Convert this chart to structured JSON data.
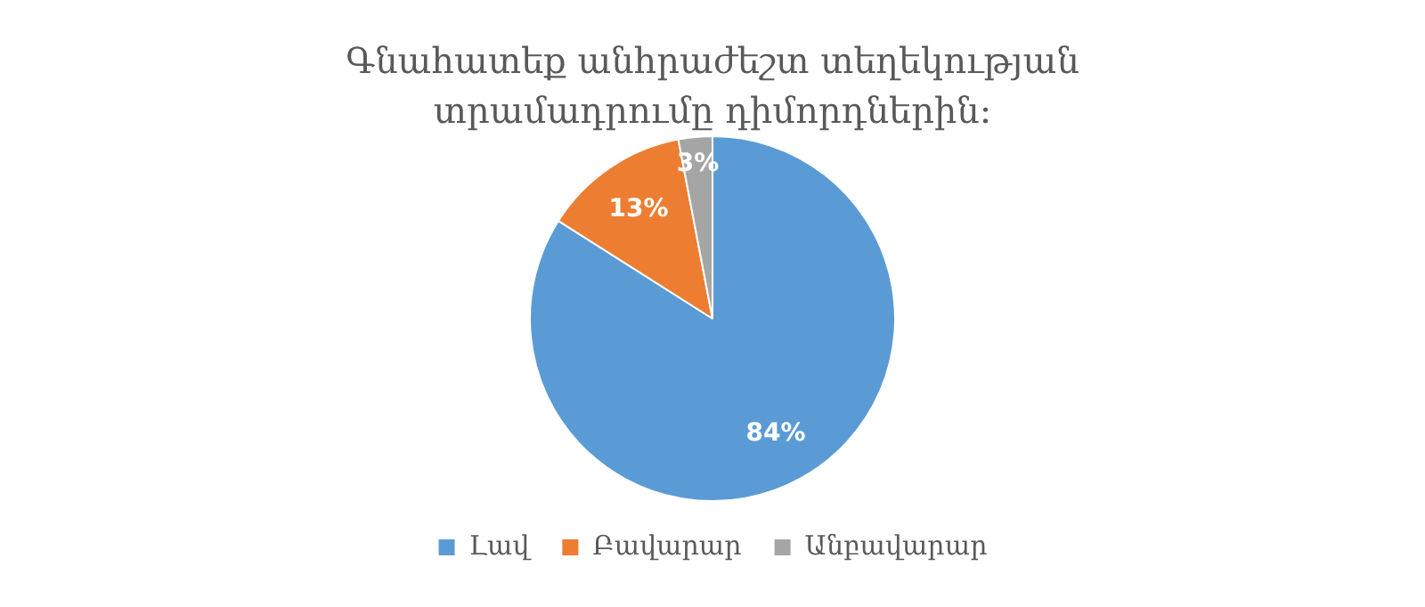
{
  "chart_data": {
    "type": "pie",
    "title": "Գնահատեք անհրաժեշտ տեղեկության տրամադրումը դիմորդներին:",
    "categories": [
      "Լավ",
      "Բավարար",
      "Անբավարար"
    ],
    "values": [
      84,
      13,
      3
    ],
    "colors": [
      "#5b9bd5",
      "#ed7d31",
      "#a5a5a5"
    ],
    "value_labels": [
      "84%",
      "13%",
      "3%"
    ],
    "legend": "bottom"
  }
}
